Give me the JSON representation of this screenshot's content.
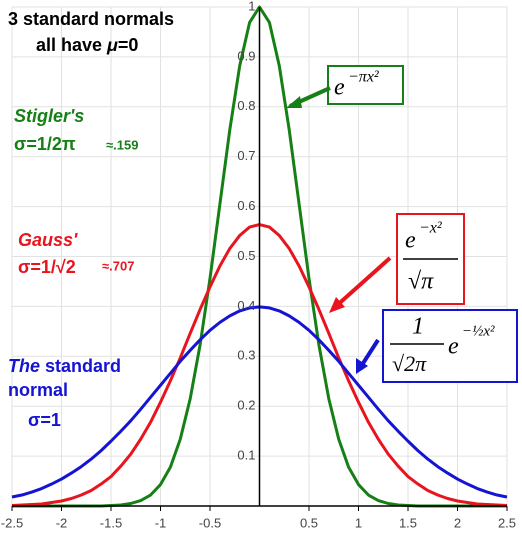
{
  "chart_data": {
    "type": "line",
    "x": [
      -2.5,
      -2.4,
      -2.3,
      -2.2,
      -2.1,
      -2.0,
      -1.9,
      -1.8,
      -1.7,
      -1.6,
      -1.5,
      -1.4,
      -1.3,
      -1.2,
      -1.1,
      -1.0,
      -0.9,
      -0.8,
      -0.7,
      -0.6,
      -0.5,
      -0.4,
      -0.3,
      -0.2,
      -0.1,
      0,
      0.1,
      0.2,
      0.3,
      0.4,
      0.5,
      0.6,
      0.7,
      0.8,
      0.9,
      1.0,
      1.1,
      1.2,
      1.3,
      1.4,
      1.5,
      1.6,
      1.7,
      1.8,
      1.9,
      2.0,
      2.1,
      2.2,
      2.3,
      2.4,
      2.5
    ],
    "series": [
      {
        "name": "Stigler's",
        "color": "#168016",
        "values": [
          0,
          0,
          0,
          0,
          0,
          0,
          0,
          0,
          0,
          0,
          0.001,
          0.002,
          0.005,
          0.011,
          0.022,
          0.043,
          0.078,
          0.134,
          0.215,
          0.323,
          0.456,
          0.605,
          0.754,
          0.882,
          0.969,
          1,
          0.969,
          0.882,
          0.754,
          0.605,
          0.456,
          0.323,
          0.215,
          0.134,
          0.078,
          0.043,
          0.022,
          0.011,
          0.005,
          0.002,
          0.001,
          0,
          0,
          0,
          0,
          0,
          0,
          0,
          0,
          0,
          0
        ]
      },
      {
        "name": "Gauss'",
        "color": "#e8141e",
        "values": [
          0.001,
          0.002,
          0.003,
          0.004,
          0.007,
          0.01,
          0.015,
          0.022,
          0.031,
          0.044,
          0.059,
          0.08,
          0.104,
          0.134,
          0.168,
          0.208,
          0.251,
          0.297,
          0.346,
          0.394,
          0.439,
          0.481,
          0.516,
          0.542,
          0.559,
          0.564,
          0.559,
          0.542,
          0.516,
          0.481,
          0.439,
          0.394,
          0.346,
          0.297,
          0.251,
          0.208,
          0.168,
          0.134,
          0.104,
          0.08,
          0.059,
          0.044,
          0.031,
          0.022,
          0.015,
          0.01,
          0.007,
          0.004,
          0.003,
          0.002,
          0.001
        ]
      },
      {
        "name": "The standard normal",
        "color": "#1414d2",
        "values": [
          0.018,
          0.022,
          0.028,
          0.035,
          0.044,
          0.054,
          0.066,
          0.079,
          0.094,
          0.111,
          0.13,
          0.15,
          0.171,
          0.194,
          0.218,
          0.242,
          0.266,
          0.29,
          0.312,
          0.333,
          0.352,
          0.368,
          0.381,
          0.391,
          0.397,
          0.399,
          0.397,
          0.391,
          0.381,
          0.368,
          0.352,
          0.333,
          0.312,
          0.29,
          0.266,
          0.242,
          0.218,
          0.194,
          0.171,
          0.15,
          0.13,
          0.111,
          0.094,
          0.079,
          0.066,
          0.054,
          0.044,
          0.035,
          0.028,
          0.022,
          0.018
        ]
      }
    ],
    "xlim": [
      -2.5,
      2.5
    ],
    "ylim": [
      0,
      1
    ],
    "xticks": [
      -2.5,
      -2,
      -1.5,
      -1,
      -0.5,
      0.5,
      1,
      1.5,
      2,
      2.5
    ],
    "yticks": [
      0.1,
      0.2,
      0.3,
      0.4,
      0.5,
      0.6,
      0.7,
      0.8,
      0.9,
      1
    ],
    "grid": true,
    "annotations": {
      "title": [
        "3 standard normals",
        "all have ",
        "μ",
        "=0"
      ],
      "stigler": [
        "Stigler's",
        "σ=1/2π",
        "≈.159"
      ],
      "gauss": [
        "Gauss'",
        "σ=1/√2",
        "≈.707"
      ],
      "standard": [
        "The",
        " standard",
        "normal",
        "σ=1"
      ],
      "formula_green": [
        "e",
        "−πx²"
      ],
      "formula_red": [
        "e",
        "−x²",
        "√π"
      ],
      "formula_blue": [
        "1",
        "√2π",
        "e",
        "−½x²"
      ]
    }
  }
}
